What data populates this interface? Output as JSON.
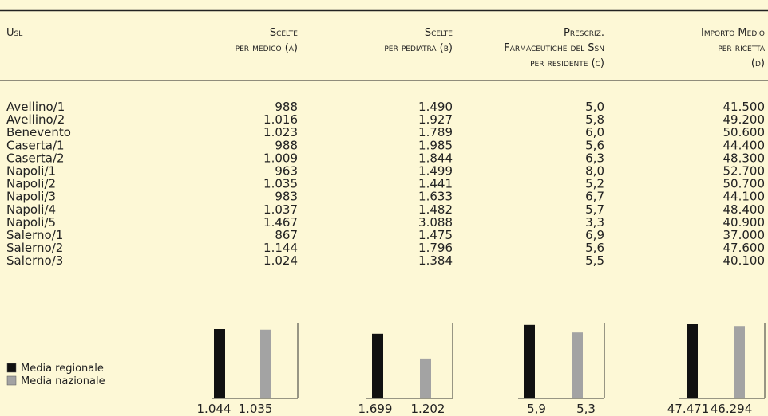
{
  "header": {
    "columns": [
      [
        "Usl"
      ],
      [
        "Scelte",
        "per medico (a)"
      ],
      [
        "Scelte",
        "per pediatra (b)"
      ],
      [
        "Prescriz.",
        "Farmaceutiche del Ssn",
        "per residente (c)"
      ],
      [
        "Importo Medio",
        "per ricetta",
        "(d)"
      ]
    ]
  },
  "table": {
    "rows": [
      [
        "Avellino/1",
        "988",
        "1.490",
        "5,0",
        "41.500"
      ],
      [
        "Avellino/2",
        "1.016",
        "1.927",
        "5,8",
        "49.200"
      ],
      [
        "Benevento",
        "1.023",
        "1.789",
        "6,0",
        "50.600"
      ],
      [
        "Caserta/1",
        "988",
        "1.985",
        "5,6",
        "44.400"
      ],
      [
        "Caserta/2",
        "1.009",
        "1.844",
        "6,3",
        "48.300"
      ],
      [
        "Napoli/1",
        "963",
        "1.499",
        "8,0",
        "52.700"
      ],
      [
        "Napoli/2",
        "1.035",
        "1.441",
        "5,2",
        "50.700"
      ],
      [
        "Napoli/3",
        "983",
        "1.633",
        "6,7",
        "44.100"
      ],
      [
        "Napoli/4",
        "1.037",
        "1.482",
        "5,7",
        "48.400"
      ],
      [
        "Napoli/5",
        "1.467",
        "3.088",
        "3,3",
        "40.900"
      ],
      [
        "Salerno/1",
        "867",
        "1.475",
        "6,9",
        "37.000"
      ],
      [
        "Salerno/2",
        "1.144",
        "1.796",
        "5,6",
        "47.600"
      ],
      [
        "Salerno/3",
        "1.024",
        "1.384",
        "5,5",
        "40.100"
      ]
    ]
  },
  "legend": [
    {
      "name": "Media regionale",
      "color": "#111111"
    },
    {
      "name": "Media nazionale",
      "color": "#a3a3a3"
    }
  ],
  "summary": {
    "type": "bar",
    "groups": [
      {
        "ylim": [
          0,
          1200
        ],
        "values": [
          {
            "value": 1044,
            "label": "1.044"
          },
          {
            "value": 1035,
            "label": "1.035"
          }
        ]
      },
      {
        "ylim": [
          400,
          2000
        ],
        "values": [
          {
            "value": 1699,
            "label": "1.699"
          },
          {
            "value": 1202,
            "label": "1.202"
          }
        ]
      },
      {
        "ylim": [
          0,
          6.4
        ],
        "values": [
          {
            "value": 5.9,
            "label": "5,9"
          },
          {
            "value": 5.3,
            "label": "5,3"
          }
        ]
      },
      {
        "ylim": [
          0,
          51000
        ],
        "values": [
          {
            "value": 47471,
            "label": "47.471"
          },
          {
            "value": 46294,
            "label": "46.294"
          }
        ]
      }
    ]
  }
}
